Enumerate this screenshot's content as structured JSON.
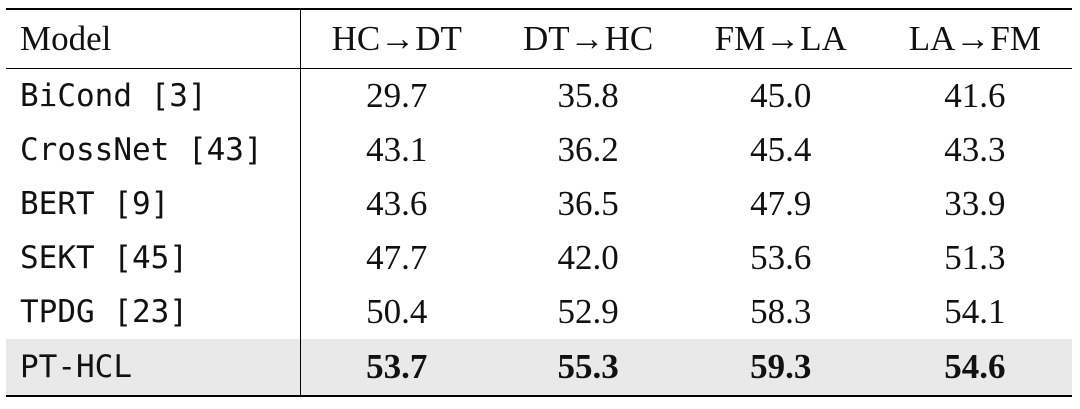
{
  "table": {
    "header": [
      "Model",
      "HC→DT",
      "DT→HC",
      "FM→LA",
      "LA→FM"
    ],
    "rows": [
      [
        "BiCond [3]",
        "29.7",
        "35.8",
        "45.0",
        "41.6"
      ],
      [
        "CrossNet [43]",
        "43.1",
        "36.2",
        "45.4",
        "43.3"
      ],
      [
        "BERT [9]",
        "43.6",
        "36.5",
        "47.9",
        "33.9"
      ],
      [
        "SEKT [45]",
        "47.7",
        "42.0",
        "53.6",
        "51.3"
      ],
      [
        "TPDG [23]",
        "50.4",
        "52.9",
        "58.3",
        "54.1"
      ],
      [
        "PT-HCL",
        "53.7",
        "55.3",
        "59.3",
        "54.6"
      ]
    ]
  }
}
